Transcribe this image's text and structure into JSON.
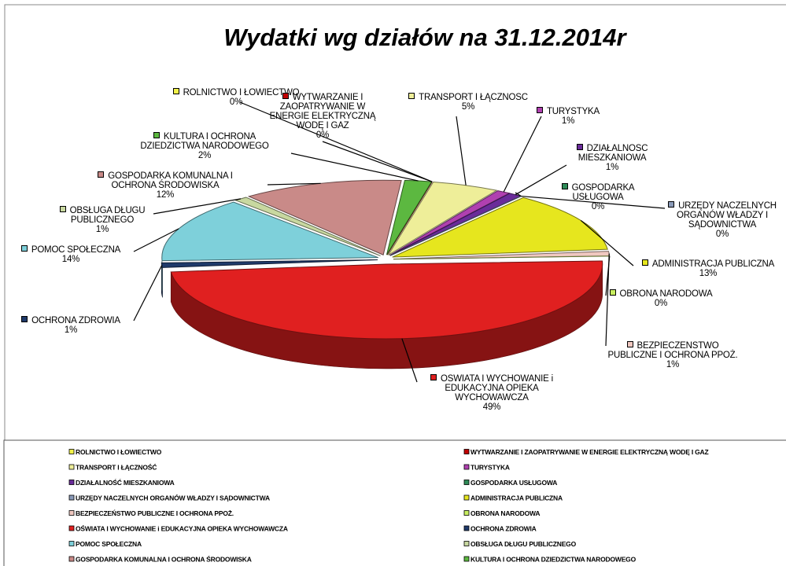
{
  "chart_data": {
    "type": "pie",
    "title": "Wydatki wg działów na 31.12.2014r",
    "categories": [
      "ROLNICTWO I ŁOWIECTWO",
      "WYTWARZANIE I ZAOPATRYWANIE W ENERGIE ELEKTRYCZNĄ WODĘ I GAZ",
      "TRANSPORT I ŁĄCZNOŚĆ",
      "TURYSTYKA",
      "DZIAŁALNOŚĆ MIESZKANIOWA",
      "GOSPODARKA USŁUGOWA",
      "URZĘDY NACZELNYCH ORGANÓW WŁADZY I SĄDOWNICTWA",
      "ADMINISTRACJA PUBLICZNA",
      "BEZPIECZEŃSTWO PUBLICZNE I OCHRONA PPOŻ.",
      "OBRONA NARODOWA",
      "OŚWIATA I WYCHOWANIE i EDUKACYJNA OPIEKA WYCHOWAWCZA",
      "OCHRONA ZDROWIA",
      "POMOC SPOŁECZNA",
      "OBSŁUGA DŁUGU PUBLICZNEGO",
      "GOSPODARKA KOMUNALNA I OCHRONA ŚRODOWISKA",
      "KULTURA I OCHRONA DZIEDZICTWA NARODOWEGO"
    ],
    "values": [
      0,
      0,
      5,
      1,
      1,
      0,
      0,
      13,
      1,
      0,
      49,
      1,
      14,
      1,
      12,
      2
    ],
    "value_labels": [
      "0%",
      "0%",
      "5%",
      "1%",
      "1%",
      "0%",
      "0%",
      "13%",
      "1%",
      "0%",
      "49%",
      "1%",
      "14%",
      "1%",
      "12%",
      "2%"
    ],
    "colors": [
      "#f2f24a",
      "#c00000",
      "#eeee99",
      "#b040b0",
      "#6a2c9a",
      "#2e8b57",
      "#8a9ab8",
      "#e6e61e",
      "#f0c8c0",
      "#c8ee60",
      "#e02020",
      "#1f3a6a",
      "#7ed0da",
      "#c8d8a0",
      "#c98a88",
      "#5cb840"
    ],
    "legend": "bottom"
  }
}
